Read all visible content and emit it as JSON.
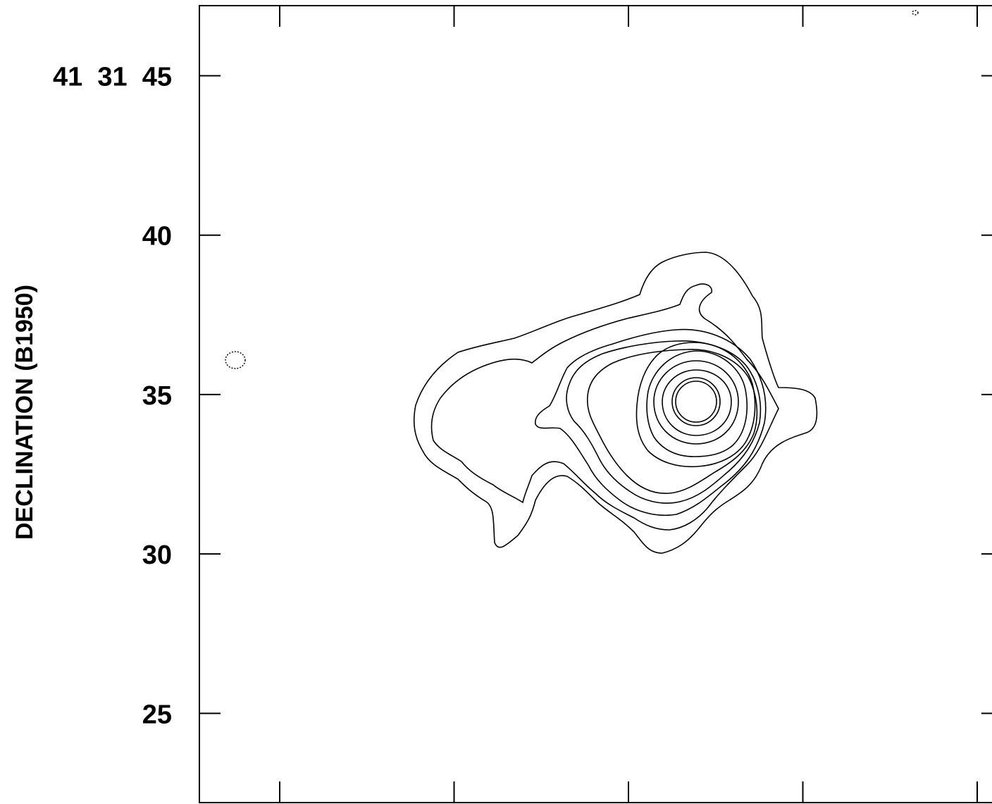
{
  "chart_data": {
    "type": "contour",
    "ylabel": "DECLINATION (B1950)",
    "y_ticks": [
      {
        "value": 45,
        "label": "41  31  45"
      },
      {
        "value": 40,
        "label": "40"
      },
      {
        "value": 35,
        "label": "35"
      },
      {
        "value": 30,
        "label": "30"
      },
      {
        "value": 25,
        "label": "25"
      }
    ],
    "ylim": [
      22.2,
      47.2
    ],
    "x_tick_count": 5,
    "peak": {
      "dec": 34.5
    },
    "positive_contour_levels": 10,
    "negative_contours": 2
  }
}
